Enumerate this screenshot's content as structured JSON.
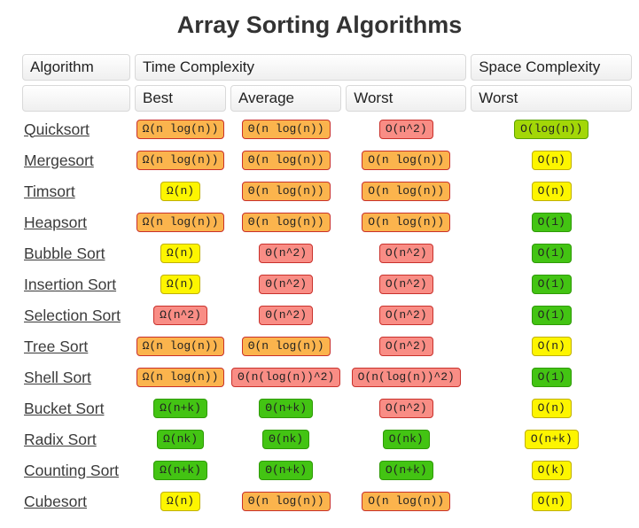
{
  "title": "Array Sorting Algorithms",
  "badge_colors": {
    "excellent": {
      "bg": "#43c413",
      "border": "#2e9a06"
    },
    "good": {
      "bg": "#a3d707",
      "border": "#5ba300"
    },
    "fair": {
      "bg": "#fdf500",
      "border": "#c0b000"
    },
    "bad": {
      "bg": "#fbb44d",
      "border": "#c9312c"
    },
    "horrible": {
      "bg": "#f98d85",
      "border": "#c9312c"
    }
  },
  "table": {
    "header": {
      "algorithm": "Algorithm",
      "time_complexity": "Time Complexity",
      "space_complexity": "Space Complexity",
      "sub": {
        "best": "Best",
        "average": "Average",
        "worst": "Worst",
        "space_worst": "Worst"
      }
    },
    "rows": [
      {
        "name": "Quicksort",
        "best": {
          "text": "Ω(n log(n))",
          "level": "bad"
        },
        "average": {
          "text": "Θ(n log(n))",
          "level": "bad"
        },
        "worst": {
          "text": "O(n^2)",
          "level": "horrible"
        },
        "space_worst": {
          "text": "O(log(n))",
          "level": "good"
        }
      },
      {
        "name": "Mergesort",
        "best": {
          "text": "Ω(n log(n))",
          "level": "bad"
        },
        "average": {
          "text": "Θ(n log(n))",
          "level": "bad"
        },
        "worst": {
          "text": "O(n log(n))",
          "level": "bad"
        },
        "space_worst": {
          "text": "O(n)",
          "level": "fair"
        }
      },
      {
        "name": "Timsort",
        "best": {
          "text": "Ω(n)",
          "level": "fair"
        },
        "average": {
          "text": "Θ(n log(n))",
          "level": "bad"
        },
        "worst": {
          "text": "O(n log(n))",
          "level": "bad"
        },
        "space_worst": {
          "text": "O(n)",
          "level": "fair"
        }
      },
      {
        "name": "Heapsort",
        "best": {
          "text": "Ω(n log(n))",
          "level": "bad"
        },
        "average": {
          "text": "Θ(n log(n))",
          "level": "bad"
        },
        "worst": {
          "text": "O(n log(n))",
          "level": "bad"
        },
        "space_worst": {
          "text": "O(1)",
          "level": "excellent"
        }
      },
      {
        "name": "Bubble Sort",
        "best": {
          "text": "Ω(n)",
          "level": "fair"
        },
        "average": {
          "text": "Θ(n^2)",
          "level": "horrible"
        },
        "worst": {
          "text": "O(n^2)",
          "level": "horrible"
        },
        "space_worst": {
          "text": "O(1)",
          "level": "excellent"
        }
      },
      {
        "name": "Insertion Sort",
        "best": {
          "text": "Ω(n)",
          "level": "fair"
        },
        "average": {
          "text": "Θ(n^2)",
          "level": "horrible"
        },
        "worst": {
          "text": "O(n^2)",
          "level": "horrible"
        },
        "space_worst": {
          "text": "O(1)",
          "level": "excellent"
        }
      },
      {
        "name": "Selection Sort",
        "best": {
          "text": "Ω(n^2)",
          "level": "horrible"
        },
        "average": {
          "text": "Θ(n^2)",
          "level": "horrible"
        },
        "worst": {
          "text": "O(n^2)",
          "level": "horrible"
        },
        "space_worst": {
          "text": "O(1)",
          "level": "excellent"
        }
      },
      {
        "name": "Tree Sort",
        "best": {
          "text": "Ω(n log(n))",
          "level": "bad"
        },
        "average": {
          "text": "Θ(n log(n))",
          "level": "bad"
        },
        "worst": {
          "text": "O(n^2)",
          "level": "horrible"
        },
        "space_worst": {
          "text": "O(n)",
          "level": "fair"
        }
      },
      {
        "name": "Shell Sort",
        "best": {
          "text": "Ω(n log(n))",
          "level": "bad"
        },
        "average": {
          "text": "Θ(n(log(n))^2)",
          "level": "horrible"
        },
        "worst": {
          "text": "O(n(log(n))^2)",
          "level": "horrible"
        },
        "space_worst": {
          "text": "O(1)",
          "level": "excellent"
        }
      },
      {
        "name": "Bucket Sort",
        "best": {
          "text": "Ω(n+k)",
          "level": "excellent"
        },
        "average": {
          "text": "Θ(n+k)",
          "level": "excellent"
        },
        "worst": {
          "text": "O(n^2)",
          "level": "horrible"
        },
        "space_worst": {
          "text": "O(n)",
          "level": "fair"
        }
      },
      {
        "name": "Radix Sort",
        "best": {
          "text": "Ω(nk)",
          "level": "excellent"
        },
        "average": {
          "text": "Θ(nk)",
          "level": "excellent"
        },
        "worst": {
          "text": "O(nk)",
          "level": "excellent"
        },
        "space_worst": {
          "text": "O(n+k)",
          "level": "fair"
        }
      },
      {
        "name": "Counting Sort",
        "best": {
          "text": "Ω(n+k)",
          "level": "excellent"
        },
        "average": {
          "text": "Θ(n+k)",
          "level": "excellent"
        },
        "worst": {
          "text": "O(n+k)",
          "level": "excellent"
        },
        "space_worst": {
          "text": "O(k)",
          "level": "fair"
        }
      },
      {
        "name": "Cubesort",
        "best": {
          "text": "Ω(n)",
          "level": "fair"
        },
        "average": {
          "text": "Θ(n log(n))",
          "level": "bad"
        },
        "worst": {
          "text": "O(n log(n))",
          "level": "bad"
        },
        "space_worst": {
          "text": "O(n)",
          "level": "fair"
        }
      }
    ]
  }
}
